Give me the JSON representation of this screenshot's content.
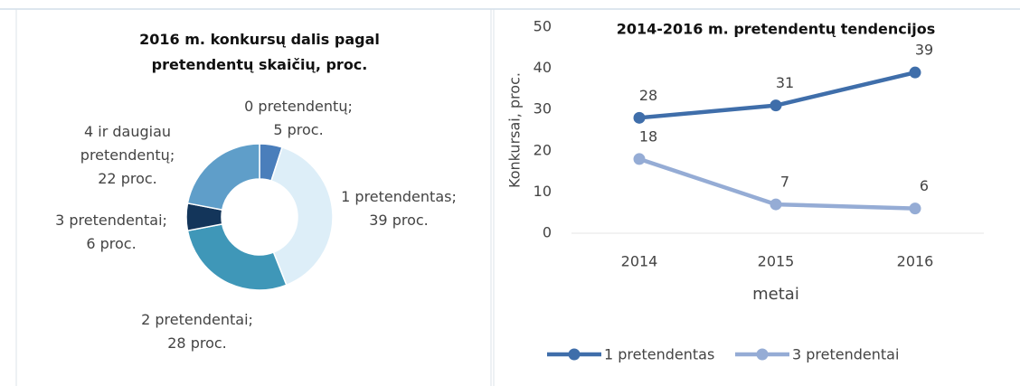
{
  "chart_data": [
    {
      "type": "donut",
      "title": "2016 m. konkursų dalis pagal pretendentų skaičių, proc.",
      "categories": [
        "0 pretendentų;",
        "1 pretendentas;",
        "2 pretendentai;",
        "3 pretendentai;",
        "4 ir daugiau pretendentų;"
      ],
      "values": [
        5,
        39,
        28,
        6,
        22
      ],
      "value_labels": [
        "5 proc.",
        "39 proc.",
        "28 proc.",
        "6 proc.",
        "22 proc."
      ],
      "colors": [
        "#4a7ebb",
        "#ddeef8",
        "#3f97b8",
        "#13355a",
        "#5f9ec9"
      ]
    },
    {
      "type": "line",
      "title": "2014-2016 m. pretendentų tendencijos",
      "categories": [
        "2014",
        "2015",
        "2016"
      ],
      "series": [
        {
          "name": "1 pretendentas",
          "color": "#3f6eaa",
          "values": [
            28,
            31,
            39
          ]
        },
        {
          "name": "3 pretendentai",
          "color": "#95acd5",
          "values": [
            18,
            7,
            6
          ]
        }
      ],
      "ylim": [
        0,
        50
      ],
      "yticks": [
        0,
        10,
        20,
        30,
        40,
        50
      ],
      "y_label": "Konkursai, proc.",
      "x_label": "metai",
      "legend": "bottom"
    }
  ]
}
